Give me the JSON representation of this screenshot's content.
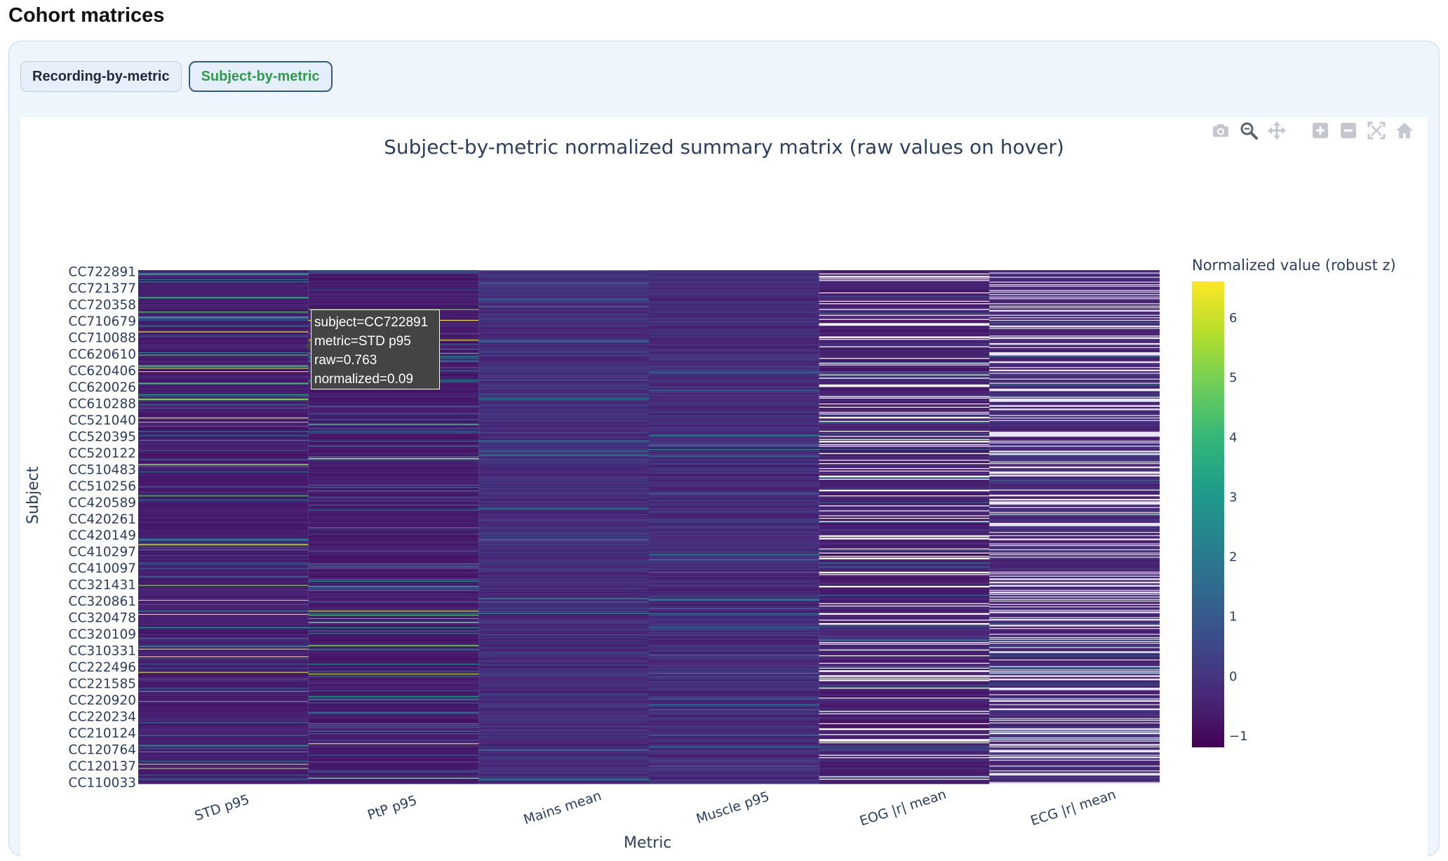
{
  "page": {
    "title": "Cohort matrices"
  },
  "tabs": [
    {
      "label": "Recording-by-metric",
      "active": false
    },
    {
      "label": "Subject-by-metric",
      "active": true
    }
  ],
  "modebar": [
    "camera-icon",
    "zoom-icon",
    "pan-icon",
    "zoom-in-icon",
    "zoom-out-icon",
    "autoscale-icon",
    "reset-axes-icon"
  ],
  "colors": {
    "accent_active_tab": "#2e9a4a",
    "viridis": [
      "#440154",
      "#482878",
      "#3e4989",
      "#31688e",
      "#26828e",
      "#1f9e89",
      "#35b779",
      "#6ece58",
      "#b5de2b",
      "#fde725"
    ]
  },
  "tooltip": {
    "subject": "subject=CC722891",
    "metric": "metric=STD p95",
    "raw": "raw=0.763",
    "normalized": "normalized=0.09"
  },
  "chart_data": {
    "type": "heatmap",
    "title": "Subject-by-metric normalized summary matrix (raw values on hover)",
    "xlabel": "Metric",
    "ylabel": "Subject",
    "x": [
      "STD p95",
      "PtP p95",
      "Mains mean",
      "Muscle p95",
      "EOG |r| mean",
      "ECG |r| mean"
    ],
    "y_tick_labels": [
      "CC722891",
      "CC721377",
      "CC720358",
      "CC710679",
      "CC710088",
      "CC620610",
      "CC620406",
      "CC620026",
      "CC610288",
      "CC521040",
      "CC520395",
      "CC520122",
      "CC510483",
      "CC510256",
      "CC420589",
      "CC420261",
      "CC420149",
      "CC410297",
      "CC410097",
      "CC321431",
      "CC320861",
      "CC320478",
      "CC320109",
      "CC310331",
      "CC222496",
      "CC221585",
      "CC220920",
      "CC220234",
      "CC210124",
      "CC120764",
      "CC120137",
      "CC110033"
    ],
    "colorbar": {
      "title": "Normalized value (robust z)",
      "ticks": [
        6,
        5,
        4,
        3,
        2,
        1,
        0,
        -1
      ],
      "tick_labels": [
        "6",
        "5",
        "4",
        "3",
        "2",
        "1",
        "0",
        "−1"
      ],
      "range": [
        -1.2,
        6.6
      ],
      "colorscale": "Viridis"
    },
    "legend": "none",
    "grid": false
  }
}
